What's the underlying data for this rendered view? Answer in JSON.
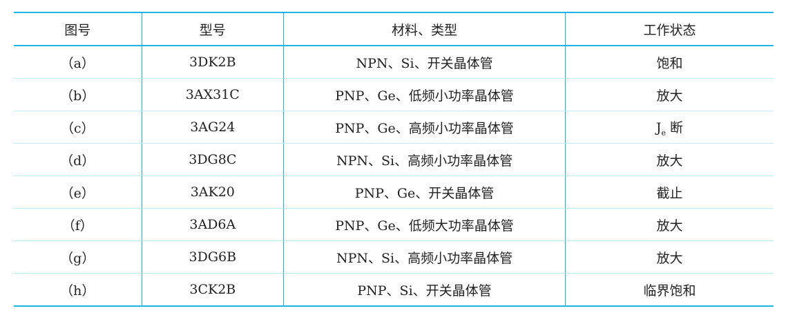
{
  "table": {
    "headers": [
      "图号",
      "型号",
      "材料、类型",
      "工作状态"
    ],
    "rows": [
      [
        "（a）",
        "3DK2B",
        "NPN、Si、开关晶体管",
        "饱和"
      ],
      [
        "（b）",
        "3AX31C",
        "PNP、Ge、低频小功率晶体管",
        "放大"
      ],
      [
        "（c）",
        "3AG24",
        "PNP、Ge、高频小功率晶体管",
        ""
      ],
      [
        "（d）",
        "3DG8C",
        "NPN、Si、高频小功率晶体管",
        "放大"
      ],
      [
        "（e）",
        "3AK20",
        "PNP、Ge、开关晶体管",
        "截止"
      ],
      [
        "（f）",
        "3AD6A",
        "PNP、Ge、低频大功率晶体管",
        "放大"
      ],
      [
        "（g）",
        "3DG6B",
        "NPN、Si、高频小功率晶体管",
        "放大"
      ],
      [
        "（h）",
        "3CK2B",
        "PNP、Si、开关晶体管",
        "临界饱和"
      ]
    ],
    "special_cell": {
      "main": "J",
      "sub": "e",
      "suffix": " 断"
    }
  },
  "colors": {
    "rule": "#1ab6e8"
  }
}
